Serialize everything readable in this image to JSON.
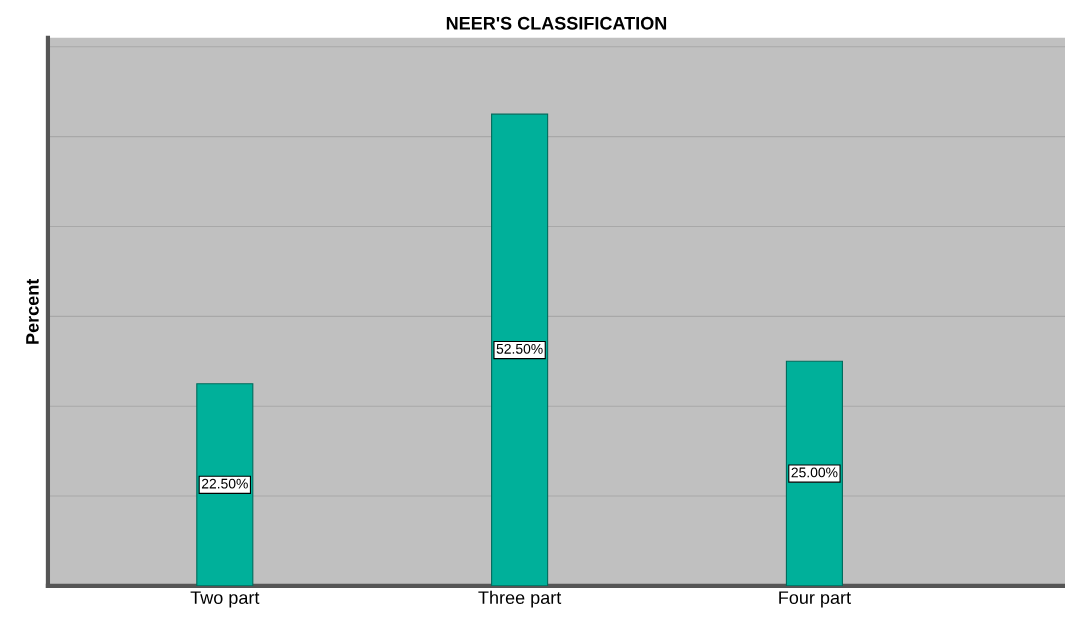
{
  "chart_data": {
    "type": "bar",
    "title": "NEER'S CLASSIFICATION",
    "ylabel": "Percent",
    "categories": [
      "Two part",
      "Three part",
      "Four part"
    ],
    "values": [
      22.5,
      52.5,
      25.0
    ],
    "value_labels": [
      "22.50%",
      "52.50%",
      "25.00%"
    ],
    "color": "#00b09a",
    "ylim": [
      0,
      61
    ],
    "yticks": [
      {
        "value": 0,
        "label": null
      },
      {
        "value": 10,
        "label": null
      },
      {
        "value": 20,
        "label": null
      },
      {
        "value": 30,
        "label": null
      },
      {
        "value": 40,
        "label": null
      },
      {
        "value": 50,
        "label": null
      },
      {
        "value": 60,
        "label": null
      }
    ],
    "tick_labels": "x",
    "grid": "y"
  }
}
